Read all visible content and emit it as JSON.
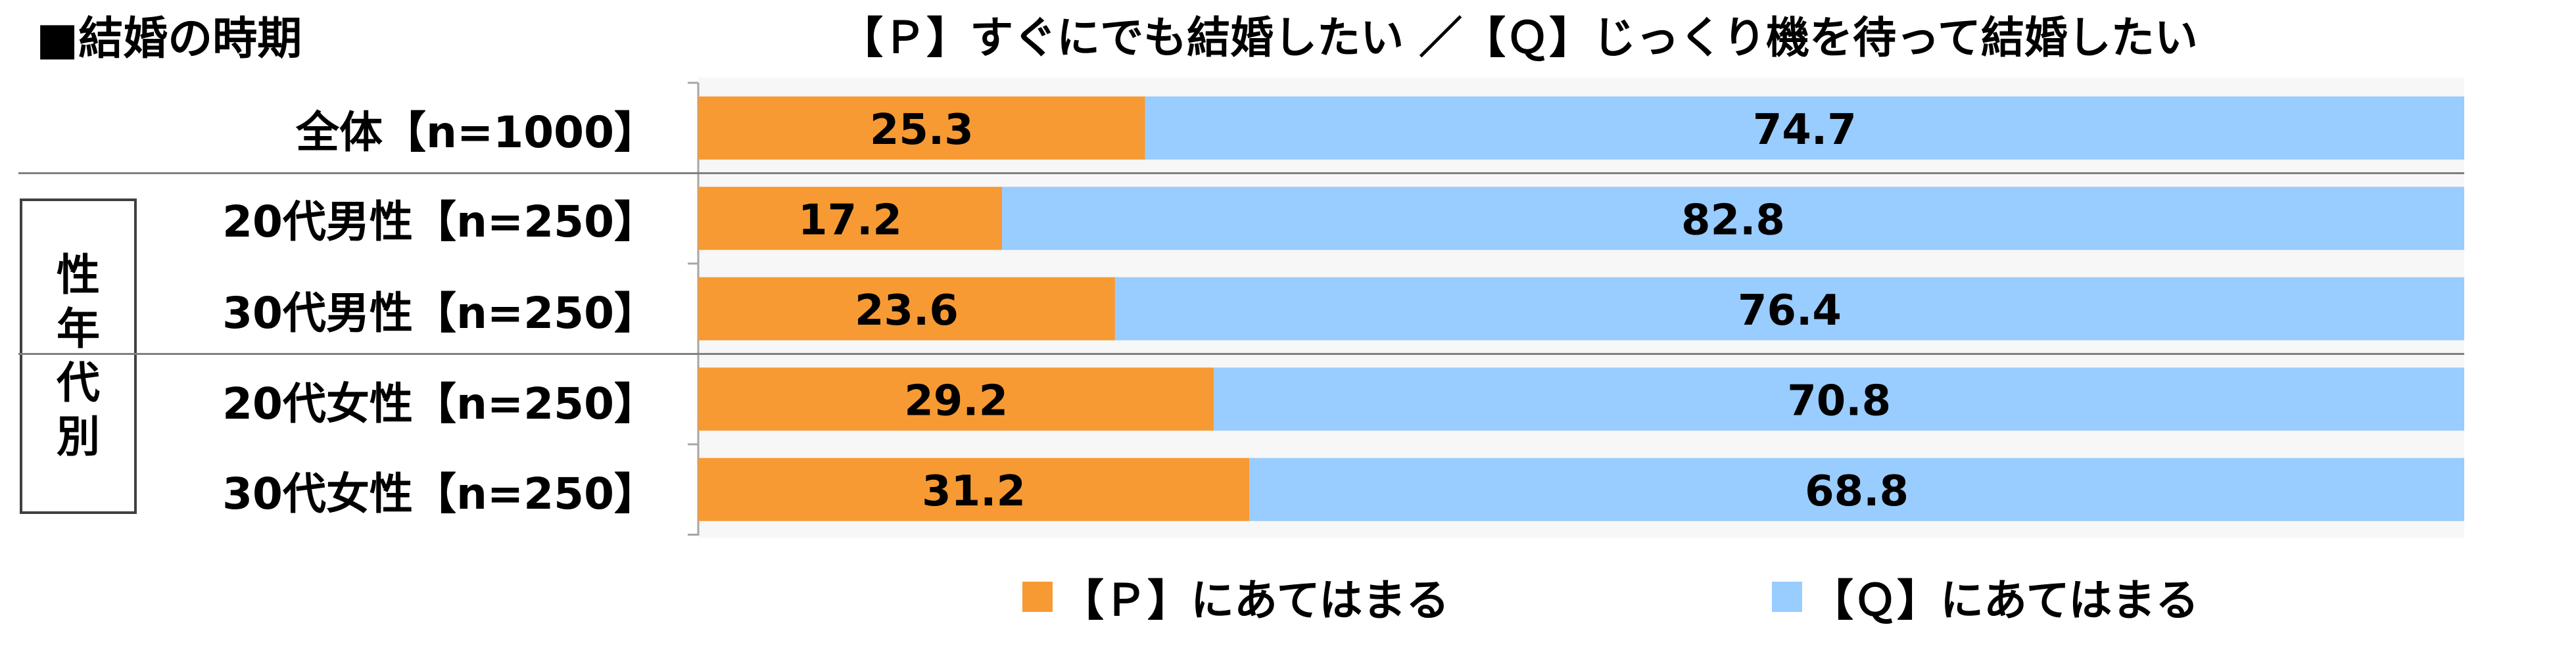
{
  "section_title": "■結婚の時期",
  "chart_title": "【Ｐ】すぐにでも結婚したい ／【Ｑ】じっくり機を待って結婚したい",
  "group_label": "性年代別",
  "chart_data": {
    "type": "bar",
    "orientation": "horizontal",
    "stacked": "100%",
    "title": "【Ｐ】すぐにでも結婚したい ／【Ｑ】じっくり機を待って結婚したい",
    "categories": [
      "全体【n=1000】",
      "20代男性【n=250】",
      "30代男性【n=250】",
      "20代女性【n=250】",
      "30代女性【n=250】"
    ],
    "series": [
      {
        "name": "【Ｐ】にあてはまる",
        "color": "#F79A33",
        "values": [
          25.3,
          17.2,
          23.6,
          29.2,
          31.2
        ]
      },
      {
        "name": "【Ｑ】にあてはまる",
        "color": "#99CCFF",
        "values": [
          74.7,
          82.8,
          76.4,
          70.8,
          68.8
        ]
      }
    ],
    "xlim": [
      0,
      100
    ],
    "grid": false,
    "legend_position": "bottom"
  },
  "legend": {
    "p_label": "【Ｐ】にあてはまる",
    "q_label": "【Ｑ】にあてはまる"
  }
}
